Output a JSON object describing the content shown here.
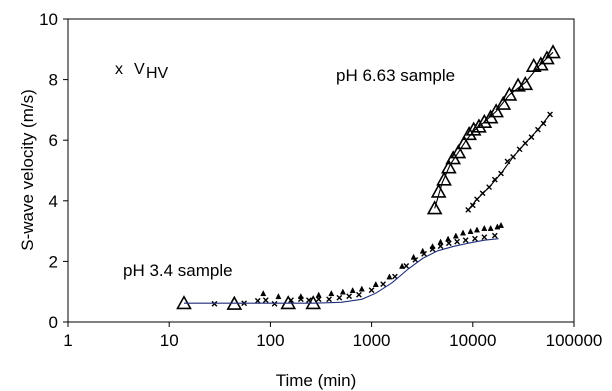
{
  "chart_data": {
    "type": "scatter",
    "title": "",
    "xlabel": "Time (min)",
    "ylabel": "S-wave velocity (m/s)",
    "x_scale": "log",
    "xlim": [
      1,
      100000
    ],
    "ylim": [
      0,
      10
    ],
    "x_ticks": [
      1,
      10,
      100,
      1000,
      10000,
      100000
    ],
    "x_tick_labels": [
      "1",
      "10",
      "100",
      "1000",
      "10000",
      "100000"
    ],
    "y_ticks": [
      0,
      2,
      4,
      6,
      8,
      10
    ],
    "y_tick_labels": [
      "0",
      "2",
      "4",
      "6",
      "8",
      "10"
    ],
    "grid": false,
    "legend": {
      "placement": "top-left",
      "entries": [
        {
          "marker": "x-marker",
          "label_main": "V",
          "label_sub": "HV"
        }
      ]
    },
    "annotations": [
      {
        "text": "pH 6.63 sample",
        "x": 3500,
        "y": 8.1
      },
      {
        "text": "pH 3.4 sample",
        "x": 7.5,
        "y": 1.45
      }
    ],
    "series": [
      {
        "marker": "triangle",
        "color": "#000000",
        "points": [
          [
            14,
            0.62
          ],
          [
            44,
            0.6
          ],
          [
            150,
            0.62
          ],
          [
            265,
            0.62
          ],
          [
            4200,
            3.75
          ],
          [
            4600,
            4.3
          ],
          [
            5200,
            4.7
          ],
          [
            5800,
            5.1
          ],
          [
            6400,
            5.4
          ],
          [
            7200,
            5.6
          ],
          [
            8200,
            5.9
          ],
          [
            9200,
            6.2
          ],
          [
            10200,
            6.35
          ],
          [
            11500,
            6.45
          ],
          [
            13000,
            6.6
          ],
          [
            15000,
            6.75
          ],
          [
            17000,
            6.95
          ],
          [
            20000,
            7.2
          ],
          [
            23000,
            7.5
          ],
          [
            28000,
            7.8
          ],
          [
            33000,
            7.85
          ],
          [
            40000,
            8.45
          ],
          [
            47000,
            8.5
          ],
          [
            54000,
            8.7
          ],
          [
            62000,
            8.9
          ]
        ]
      },
      {
        "marker": "x-marker",
        "color": "#000000",
        "points": [
          [
            28,
            0.6
          ],
          [
            55,
            0.62
          ],
          [
            75,
            0.7
          ],
          [
            90,
            0.72
          ],
          [
            110,
            0.6
          ],
          [
            160,
            0.72
          ],
          [
            200,
            0.75
          ],
          [
            240,
            0.72
          ],
          [
            300,
            0.75
          ],
          [
            380,
            0.75
          ],
          [
            480,
            0.8
          ],
          [
            600,
            0.85
          ],
          [
            750,
            0.9
          ],
          [
            1000,
            1.05
          ],
          [
            1300,
            1.25
          ],
          [
            1700,
            1.5
          ],
          [
            2200,
            1.85
          ],
          [
            2700,
            2.05
          ],
          [
            3300,
            2.25
          ],
          [
            4000,
            2.4
          ],
          [
            4800,
            2.5
          ],
          [
            5800,
            2.6
          ],
          [
            7000,
            2.65
          ],
          [
            8500,
            2.7
          ],
          [
            10500,
            2.75
          ],
          [
            13000,
            2.8
          ],
          [
            16500,
            2.85
          ],
          [
            9000,
            3.7
          ],
          [
            10000,
            3.85
          ],
          [
            11000,
            4.05
          ],
          [
            12500,
            4.25
          ],
          [
            14500,
            4.45
          ],
          [
            16500,
            4.7
          ],
          [
            19000,
            4.9
          ],
          [
            22000,
            5.3
          ],
          [
            25000,
            5.45
          ],
          [
            29000,
            5.7
          ],
          [
            33000,
            5.9
          ],
          [
            38000,
            6.1
          ],
          [
            44000,
            6.35
          ],
          [
            50000,
            6.55
          ],
          [
            58000,
            6.85
          ]
        ]
      },
      {
        "marker": "small-triangle",
        "color": "#000000",
        "points": [
          [
            85,
            0.95
          ],
          [
            120,
            0.85
          ],
          [
            200,
            0.85
          ],
          [
            300,
            0.9
          ],
          [
            400,
            0.95
          ],
          [
            520,
            1.0
          ],
          [
            650,
            1.05
          ],
          [
            800,
            1.1
          ],
          [
            1100,
            1.25
          ],
          [
            1500,
            1.5
          ],
          [
            2000,
            1.85
          ],
          [
            2600,
            2.15
          ],
          [
            3200,
            2.35
          ],
          [
            4000,
            2.5
          ],
          [
            4800,
            2.65
          ],
          [
            5700,
            2.75
          ],
          [
            6800,
            2.85
          ],
          [
            8000,
            2.95
          ],
          [
            9500,
            3.0
          ],
          [
            11000,
            3.05
          ],
          [
            13000,
            3.1
          ],
          [
            15000,
            3.1
          ],
          [
            17500,
            3.15
          ],
          [
            19000,
            3.2
          ]
        ]
      },
      {
        "marker": "line",
        "color": "#1f2f7a",
        "points": [
          [
            14,
            0.62
          ],
          [
            44,
            0.62
          ],
          [
            80,
            0.62
          ],
          [
            150,
            0.62
          ],
          [
            265,
            0.62
          ],
          [
            500,
            0.65
          ],
          [
            800,
            0.75
          ],
          [
            1100,
            0.95
          ],
          [
            1600,
            1.3
          ],
          [
            2300,
            1.75
          ],
          [
            3200,
            2.1
          ],
          [
            4500,
            2.35
          ],
          [
            6500,
            2.5
          ],
          [
            9000,
            2.6
          ],
          [
            13000,
            2.7
          ],
          [
            18000,
            2.75
          ]
        ]
      },
      {
        "marker": "line",
        "color": "#000000",
        "points": [
          [
            4200,
            3.75
          ],
          [
            5000,
            4.6
          ],
          [
            6000,
            5.2
          ],
          [
            7200,
            5.6
          ],
          [
            8600,
            6.0
          ],
          [
            10200,
            6.3
          ],
          [
            13000,
            6.6
          ],
          [
            17000,
            6.95
          ],
          [
            23000,
            7.5
          ],
          [
            33000,
            7.9
          ],
          [
            45000,
            8.45
          ],
          [
            62000,
            8.9
          ]
        ]
      },
      {
        "marker": "line",
        "color": "#000000",
        "points": [
          [
            9000,
            3.7
          ],
          [
            11000,
            4.05
          ],
          [
            14500,
            4.45
          ],
          [
            19000,
            4.9
          ],
          [
            25000,
            5.45
          ],
          [
            33000,
            5.9
          ],
          [
            44000,
            6.35
          ],
          [
            58000,
            6.85
          ]
        ]
      }
    ]
  }
}
